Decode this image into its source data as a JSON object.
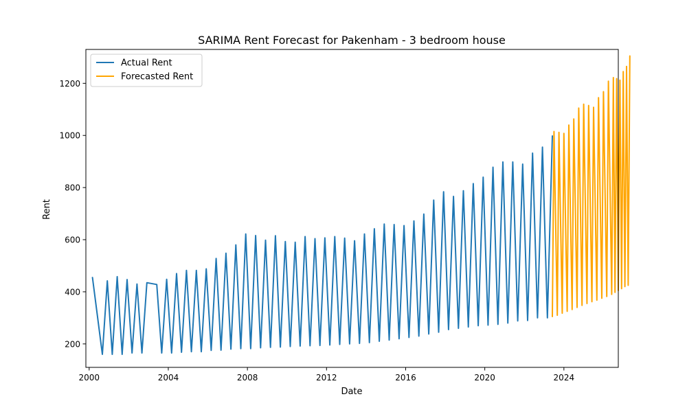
{
  "chart_data": {
    "type": "line",
    "title": "SARIMA Rent Forecast for Pakenham - 3 bedroom house",
    "xlabel": "Date",
    "ylabel": "Rent",
    "x_axis": {
      "kind": "date",
      "range": [
        "1999-11-01",
        "2026-10-01"
      ],
      "ticks": [
        "2000",
        "2004",
        "2008",
        "2012",
        "2016",
        "2020",
        "2024"
      ]
    },
    "y_axis": {
      "range": [
        110,
        1330
      ],
      "ticks": [
        200,
        400,
        600,
        800,
        1000,
        1200
      ]
    },
    "grid": false,
    "legend": {
      "position": "top-left",
      "entries": [
        "Actual Rent",
        "Forecasted Rent"
      ]
    },
    "series": [
      {
        "name": "Actual Rent",
        "color": "#1f77b4",
        "points": [
          [
            "2000-03-01",
            455
          ],
          [
            "2000-09-01",
            160
          ],
          [
            "2000-12-01",
            442
          ],
          [
            "2001-03-01",
            160
          ],
          [
            "2001-06-01",
            458
          ],
          [
            "2001-09-01",
            160
          ],
          [
            "2001-12-01",
            447
          ],
          [
            "2002-03-01",
            165
          ],
          [
            "2002-06-01",
            430
          ],
          [
            "2002-09-01",
            165
          ],
          [
            "2002-12-01",
            435
          ],
          [
            "2003-06-01",
            428
          ],
          [
            "2003-09-01",
            165
          ],
          [
            "2003-12-01",
            448
          ],
          [
            "2004-03-01",
            165
          ],
          [
            "2004-06-01",
            470
          ],
          [
            "2004-09-01",
            168
          ],
          [
            "2004-12-01",
            482
          ],
          [
            "2005-03-01",
            170
          ],
          [
            "2005-06-01",
            482
          ],
          [
            "2005-09-01",
            170
          ],
          [
            "2005-12-01",
            488
          ],
          [
            "2006-03-01",
            175
          ],
          [
            "2006-06-01",
            528
          ],
          [
            "2006-09-01",
            176
          ],
          [
            "2006-12-01",
            548
          ],
          [
            "2007-03-01",
            180
          ],
          [
            "2007-06-01",
            580
          ],
          [
            "2007-09-01",
            182
          ],
          [
            "2007-12-01",
            622
          ],
          [
            "2008-03-01",
            182
          ],
          [
            "2008-06-01",
            616
          ],
          [
            "2008-09-01",
            185
          ],
          [
            "2008-12-01",
            598
          ],
          [
            "2009-03-01",
            187
          ],
          [
            "2009-06-01",
            615
          ],
          [
            "2009-09-01",
            188
          ],
          [
            "2009-12-01",
            593
          ],
          [
            "2010-03-01",
            190
          ],
          [
            "2010-06-01",
            590
          ],
          [
            "2010-09-01",
            192
          ],
          [
            "2010-12-01",
            612
          ],
          [
            "2011-03-01",
            193
          ],
          [
            "2011-06-01",
            604
          ],
          [
            "2011-09-01",
            194
          ],
          [
            "2011-12-01",
            607
          ],
          [
            "2012-03-01",
            196
          ],
          [
            "2012-06-01",
            612
          ],
          [
            "2012-09-01",
            198
          ],
          [
            "2012-12-01",
            606
          ],
          [
            "2013-03-01",
            200
          ],
          [
            "2013-06-01",
            596
          ],
          [
            "2013-09-01",
            202
          ],
          [
            "2013-12-01",
            622
          ],
          [
            "2014-03-01",
            205
          ],
          [
            "2014-06-01",
            642
          ],
          [
            "2014-09-01",
            210
          ],
          [
            "2014-12-01",
            660
          ],
          [
            "2015-03-01",
            215
          ],
          [
            "2015-06-01",
            658
          ],
          [
            "2015-09-01",
            220
          ],
          [
            "2015-12-01",
            654
          ],
          [
            "2016-03-01",
            225
          ],
          [
            "2016-06-01",
            672
          ],
          [
            "2016-09-01",
            230
          ],
          [
            "2016-12-01",
            698
          ],
          [
            "2017-03-01",
            238
          ],
          [
            "2017-06-01",
            752
          ],
          [
            "2017-09-01",
            245
          ],
          [
            "2017-12-01",
            784
          ],
          [
            "2018-03-01",
            255
          ],
          [
            "2018-06-01",
            766
          ],
          [
            "2018-09-01",
            260
          ],
          [
            "2018-12-01",
            788
          ],
          [
            "2019-03-01",
            265
          ],
          [
            "2019-06-01",
            815
          ],
          [
            "2019-09-01",
            270
          ],
          [
            "2019-12-01",
            840
          ],
          [
            "2020-03-01",
            272
          ],
          [
            "2020-06-01",
            878
          ],
          [
            "2020-09-01",
            275
          ],
          [
            "2020-12-01",
            898
          ],
          [
            "2021-03-01",
            280
          ],
          [
            "2021-06-01",
            898
          ],
          [
            "2021-09-01",
            288
          ],
          [
            "2021-12-01",
            890
          ],
          [
            "2022-03-01",
            290
          ],
          [
            "2022-06-01",
            932
          ],
          [
            "2022-09-01",
            300
          ],
          [
            "2022-12-01",
            955
          ],
          [
            "2023-03-01",
            300
          ],
          [
            "2023-06-01",
            998
          ]
        ]
      },
      {
        "name": "Forecasted Rent",
        "color": "#ffa500",
        "points": [
          [
            "2023-06-01",
            305
          ],
          [
            "2023-07-01",
            1015
          ],
          [
            "2023-09-01",
            310
          ],
          [
            "2023-10-01",
            1012
          ],
          [
            "2023-12-01",
            318
          ],
          [
            "2024-01-01",
            1008
          ],
          [
            "2024-03-01",
            325
          ],
          [
            "2024-04-01",
            1040
          ],
          [
            "2024-06-01",
            332
          ],
          [
            "2024-07-01",
            1063
          ],
          [
            "2024-09-01",
            340
          ],
          [
            "2024-10-01",
            1105
          ],
          [
            "2024-12-01",
            348
          ],
          [
            "2025-01-01",
            1120
          ],
          [
            "2025-03-01",
            355
          ],
          [
            "2025-04-01",
            1115
          ],
          [
            "2025-06-01",
            362
          ],
          [
            "2025-07-01",
            1108
          ],
          [
            "2025-09-01",
            368
          ],
          [
            "2025-10-01",
            1145
          ],
          [
            "2025-12-01",
            375
          ],
          [
            "2026-01-01",
            1168
          ],
          [
            "2026-03-01",
            382
          ],
          [
            "2026-04-01",
            1208
          ],
          [
            "2026-06-01",
            390
          ],
          [
            "2026-07-01",
            1222
          ],
          [
            "2026-08-01",
            398
          ],
          [
            "2026-09-01",
            1218
          ],
          [
            "2026-10-01",
            405
          ],
          [
            "2026-11-01",
            1212
          ],
          [
            "2026-12-01",
            412
          ],
          [
            "2027-01-01",
            1245
          ],
          [
            "2027-02-01",
            420
          ],
          [
            "2027-03-01",
            1265
          ],
          [
            "2027-04-01",
            425
          ],
          [
            "2027-05-01",
            1305
          ]
        ]
      }
    ]
  }
}
